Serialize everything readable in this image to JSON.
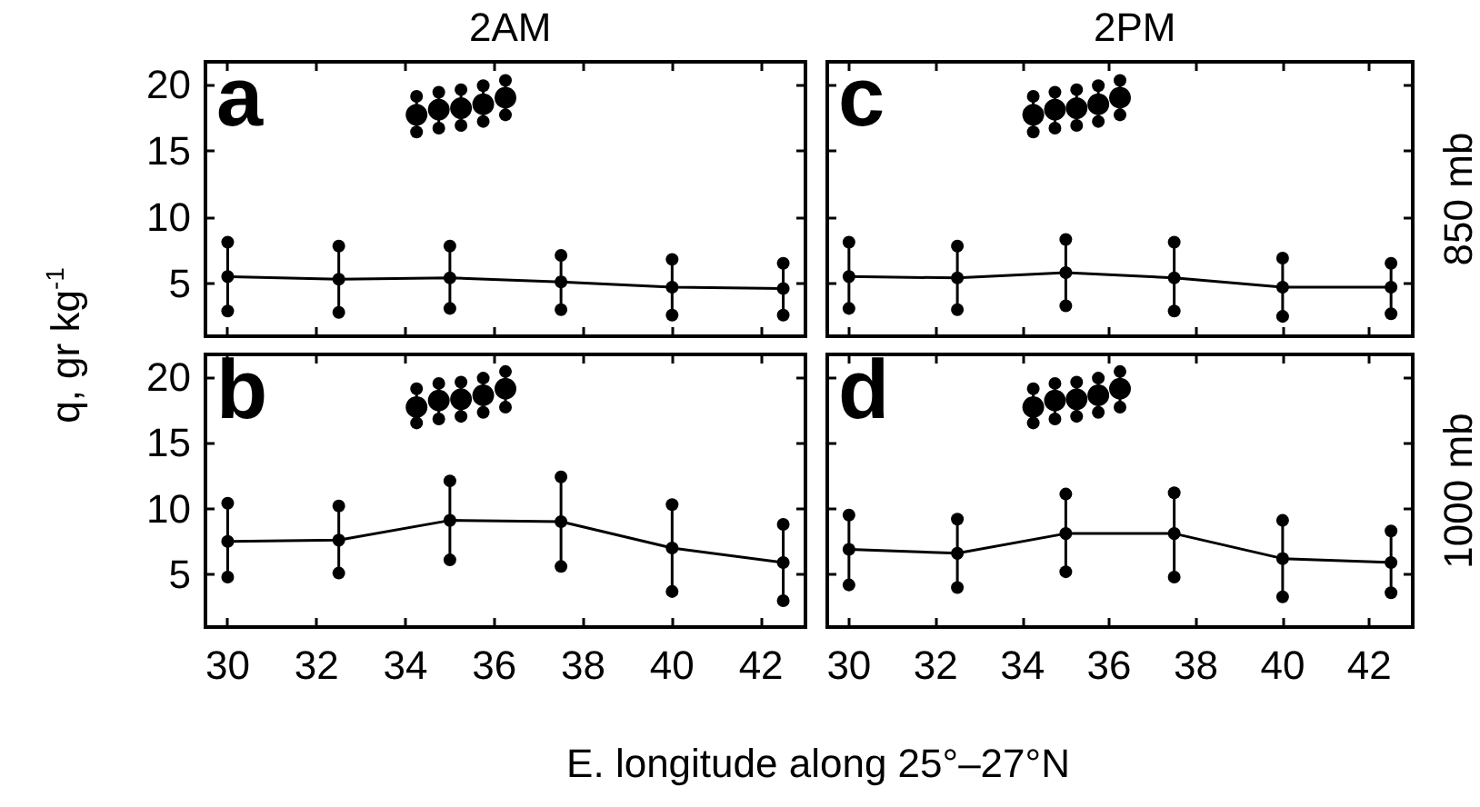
{
  "chart_data": [
    {
      "type": "line",
      "title": "2AM",
      "ylabel": "q, gr kg$^{-1}$",
      "annotations": [
        "a"
      ],
      "xlim": [
        29.5,
        43
      ],
      "xticks": [
        30,
        32,
        34,
        36,
        38,
        40,
        42
      ],
      "ylim": [
        1,
        21.7
      ],
      "yticks": [
        5,
        10,
        15,
        20
      ],
      "tick_labels": "y",
      "marker": "circle",
      "x": [
        30,
        32.5,
        35,
        37.5,
        40,
        42.5
      ],
      "series": [
        {
          "color": "#000000",
          "values": [
            5.5,
            5.3,
            5.4,
            5.1,
            4.7,
            4.6
          ],
          "errors": [
            [
              2.9,
              8.1
            ],
            [
              2.8,
              7.8
            ],
            [
              3.1,
              7.8
            ],
            [
              3.0,
              7.1
            ],
            [
              2.6,
              6.8
            ],
            [
              2.6,
              6.5
            ]
          ]
        },
        {
          "type": "scatter",
          "color": "#000000",
          "x": [
            34.25,
            34.75,
            35.25,
            35.75,
            36.25
          ],
          "values": [
            17.7,
            18.1,
            18.2,
            18.5,
            19.0
          ],
          "errors": [
            [
              16.4,
              19.1
            ],
            [
              16.7,
              19.4
            ],
            [
              16.9,
              19.6
            ],
            [
              17.2,
              19.9
            ],
            [
              17.7,
              20.3
            ]
          ]
        }
      ]
    },
    {
      "type": "line",
      "title": "2PM",
      "y2label": "850 mb",
      "annotations": [
        "c"
      ],
      "xlim": [
        29.5,
        43
      ],
      "xticks": [
        30,
        32,
        34,
        36,
        38,
        40,
        42
      ],
      "ylim": [
        1,
        21.7
      ],
      "yticks": [
        5,
        10,
        15,
        20
      ],
      "tick_labels": false,
      "marker": "circle",
      "x": [
        30,
        32.5,
        35,
        37.5,
        40,
        42.5
      ],
      "series": [
        {
          "color": "#000000",
          "values": [
            5.5,
            5.4,
            5.8,
            5.4,
            4.7,
            4.7
          ],
          "errors": [
            [
              3.1,
              8.1
            ],
            [
              3.0,
              7.8
            ],
            [
              3.3,
              8.3
            ],
            [
              2.9,
              8.1
            ],
            [
              2.5,
              6.9
            ],
            [
              2.7,
              6.5
            ]
          ]
        },
        {
          "type": "scatter",
          "color": "#000000",
          "x": [
            34.25,
            34.75,
            35.25,
            35.75,
            36.25
          ],
          "values": [
            17.7,
            18.1,
            18.2,
            18.5,
            19.0
          ],
          "errors": [
            [
              16.4,
              19.1
            ],
            [
              16.7,
              19.4
            ],
            [
              16.9,
              19.6
            ],
            [
              17.2,
              19.9
            ],
            [
              17.7,
              20.3
            ]
          ]
        }
      ]
    },
    {
      "type": "line",
      "xlabel": "E. longitude along 25°–27°N",
      "annotations": [
        "b"
      ],
      "xlim": [
        29.5,
        43
      ],
      "xticks": [
        30,
        32,
        34,
        36,
        38,
        40,
        42
      ],
      "ylim": [
        1,
        21.7
      ],
      "yticks": [
        5,
        10,
        15,
        20
      ],
      "marker": "circle",
      "x": [
        30,
        32.5,
        35,
        37.5,
        40,
        42.5
      ],
      "series": [
        {
          "color": "#000000",
          "values": [
            7.5,
            7.6,
            9.1,
            9.0,
            7.0,
            5.9
          ],
          "errors": [
            [
              4.8,
              10.4
            ],
            [
              5.1,
              10.2
            ],
            [
              6.1,
              12.1
            ],
            [
              5.6,
              12.4
            ],
            [
              3.7,
              10.3
            ],
            [
              3.0,
              8.8
            ]
          ]
        },
        {
          "type": "scatter",
          "color": "#000000",
          "x": [
            34.25,
            34.75,
            35.25,
            35.75,
            36.25
          ],
          "values": [
            17.7,
            18.2,
            18.3,
            18.6,
            19.1
          ],
          "errors": [
            [
              16.5,
              19.1
            ],
            [
              16.8,
              19.5
            ],
            [
              17.0,
              19.6
            ],
            [
              17.3,
              19.9
            ],
            [
              17.7,
              20.4
            ]
          ]
        }
      ]
    },
    {
      "type": "line",
      "y2label": "1000 mb",
      "annotations": [
        "d"
      ],
      "xlim": [
        29.5,
        43
      ],
      "xticks": [
        30,
        32,
        34,
        36,
        38,
        40,
        42
      ],
      "ylim": [
        1,
        21.7
      ],
      "yticks": [
        5,
        10,
        15,
        20
      ],
      "tick_labels": "x",
      "marker": "circle",
      "x": [
        30,
        32.5,
        35,
        37.5,
        40,
        42.5
      ],
      "series": [
        {
          "color": "#000000",
          "values": [
            6.9,
            6.6,
            8.1,
            8.1,
            6.2,
            5.9
          ],
          "errors": [
            [
              4.2,
              9.5
            ],
            [
              4.0,
              9.2
            ],
            [
              5.2,
              11.1
            ],
            [
              4.8,
              11.2
            ],
            [
              3.3,
              9.1
            ],
            [
              3.6,
              8.3
            ]
          ]
        },
        {
          "type": "scatter",
          "color": "#000000",
          "x": [
            34.25,
            34.75,
            35.25,
            35.75,
            36.25
          ],
          "values": [
            17.7,
            18.2,
            18.3,
            18.6,
            19.1
          ],
          "errors": [
            [
              16.5,
              19.1
            ],
            [
              16.8,
              19.5
            ],
            [
              17.0,
              19.6
            ],
            [
              17.3,
              19.9
            ],
            [
              17.7,
              20.4
            ]
          ]
        }
      ]
    }
  ]
}
